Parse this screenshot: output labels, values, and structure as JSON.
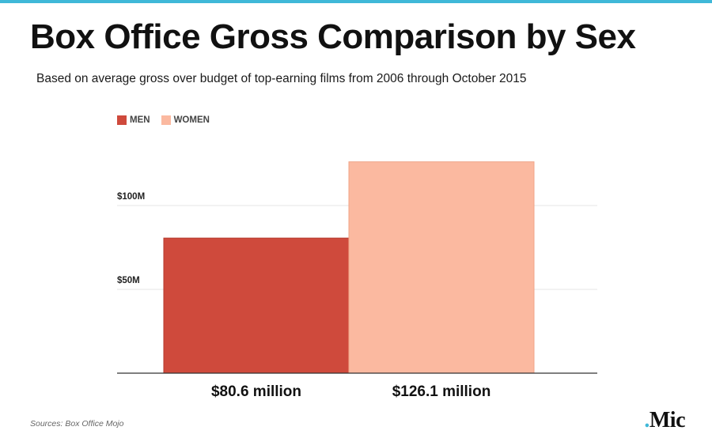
{
  "title": "Box Office Gross Comparison by Sex",
  "subtitle": "Based on average gross over budget of top-earning films from 2006 through October 2015",
  "source": "Sources: Box Office Mojo",
  "logo": {
    "dot": ".",
    "text": "Mic"
  },
  "colors": {
    "accent": "#3fb8d8",
    "men": "#cf4a3c",
    "women": "#fbb9a0",
    "grid": "#e4e4e4",
    "axis": "#333333"
  },
  "chart_data": {
    "type": "bar",
    "categories": [
      "MEN",
      "WOMEN"
    ],
    "values": [
      80.6,
      126.1
    ],
    "value_labels": [
      "$80.6 million",
      "$126.1 million"
    ],
    "units": "million USD",
    "legend": [
      "MEN",
      "WOMEN"
    ],
    "legend_position": "top-left",
    "y_ticks": [
      50,
      100
    ],
    "y_tick_labels": [
      "$50M",
      "$100M"
    ],
    "ylim": [
      0,
      150
    ],
    "grid": true
  }
}
